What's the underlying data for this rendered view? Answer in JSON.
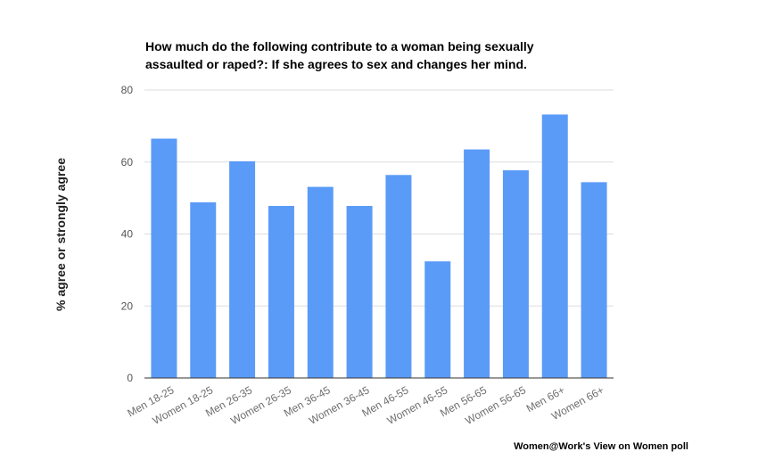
{
  "chart_data": {
    "type": "bar",
    "title_lines": [
      "How much do the following contribute to a woman being sexually",
      "assaulted or raped?: If she agrees to sex and changes her mind."
    ],
    "xlabel": "",
    "ylabel": "% agree or strongly agree",
    "ylim": [
      0,
      80
    ],
    "yticks": [
      0,
      20,
      40,
      60,
      80
    ],
    "grid": true,
    "legend": "none",
    "categories": [
      "Men 18-25",
      "Women 18-25",
      "Men 26-35",
      "Women 26-35",
      "Men 36-45",
      "Women 36-45",
      "Men 46-55",
      "Women 46-55",
      "Men 56-65",
      "Women 56-65",
      "Men 66+",
      "Women 66+"
    ],
    "values": [
      66.5,
      48.8,
      60.2,
      47.8,
      53.1,
      47.8,
      56.4,
      32.4,
      63.5,
      57.7,
      73.2,
      54.4
    ],
    "bar_color": "#5b9bf8",
    "source": "Women@Work's View on Women poll"
  }
}
